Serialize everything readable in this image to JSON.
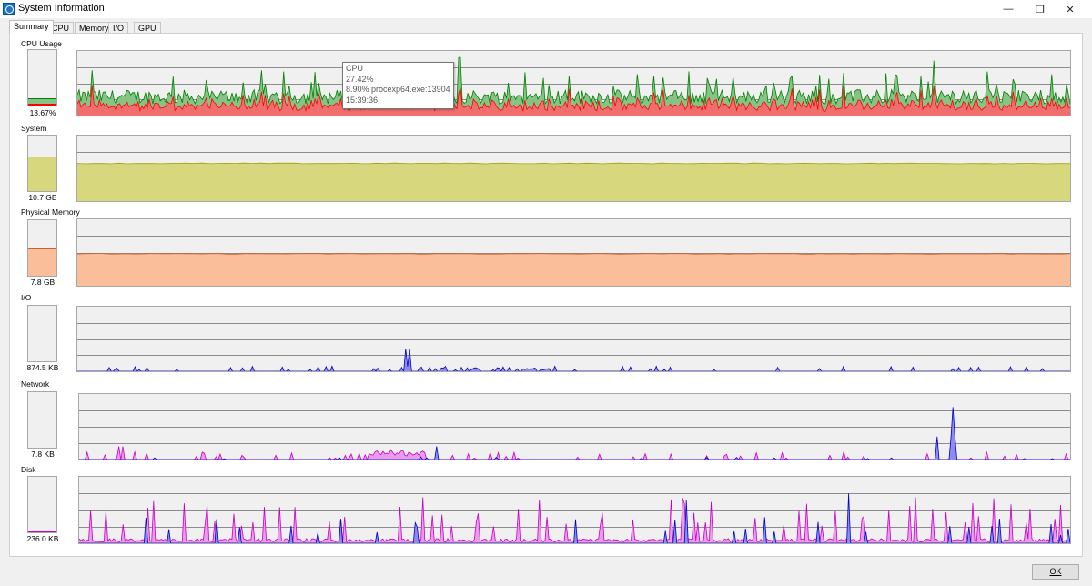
{
  "window": {
    "title": "System Information",
    "icon": "system-info-icon",
    "controls": {
      "minimize": "—",
      "restore": "❐",
      "close": "✕"
    }
  },
  "tabs": [
    {
      "label": "Summary",
      "active": true
    },
    {
      "label": "CPU",
      "active": false
    },
    {
      "label": "Memory",
      "active": false
    },
    {
      "label": "I/O",
      "active": false
    },
    {
      "label": "GPU",
      "active": false
    }
  ],
  "sections": {
    "cpu": {
      "label": "CPU Usage",
      "value": "13.67%",
      "level": 0.1367,
      "colors": {
        "total": "#008000",
        "total_fill": "#87c387",
        "kernel": "#ff0000",
        "kernel_fill": "#f06e6e"
      }
    },
    "system": {
      "label": "System",
      "value": "10.7 GB",
      "level": 0.63,
      "colors": {
        "line": "#a0a000",
        "fill": "#d7d77d"
      }
    },
    "physical": {
      "label": "Physical Memory",
      "value": "7.8 GB",
      "level": 0.49,
      "colors": {
        "line": "#c86432",
        "fill": "#fabe9b"
      }
    },
    "io": {
      "label": "I/O",
      "value": "874.5  KB",
      "level": 0.0,
      "colors": {
        "line": "#0000c8",
        "fill": "#8c8cf0"
      }
    },
    "network": {
      "label": "Network",
      "value": "7.8  KB",
      "level": 0.0,
      "colors": {
        "receive": "#c800c8",
        "receive_fill": "#eb9beb",
        "send": "#0000c8",
        "send_fill": "#8c8cf0"
      }
    },
    "disk": {
      "label": "Disk",
      "value": "236.0  KB",
      "level": 0.02,
      "colors": {
        "read": "#c800c8",
        "read_fill": "#eb9beb",
        "write": "#0000c8",
        "write_fill": "#8c8cf0"
      }
    }
  },
  "tooltip": {
    "line1": "CPU",
    "line2": "27.42%",
    "line3": "8.90% procexp64.exe:13904",
    "line4": "15:39:36"
  },
  "buttons": {
    "ok": "OK"
  }
}
